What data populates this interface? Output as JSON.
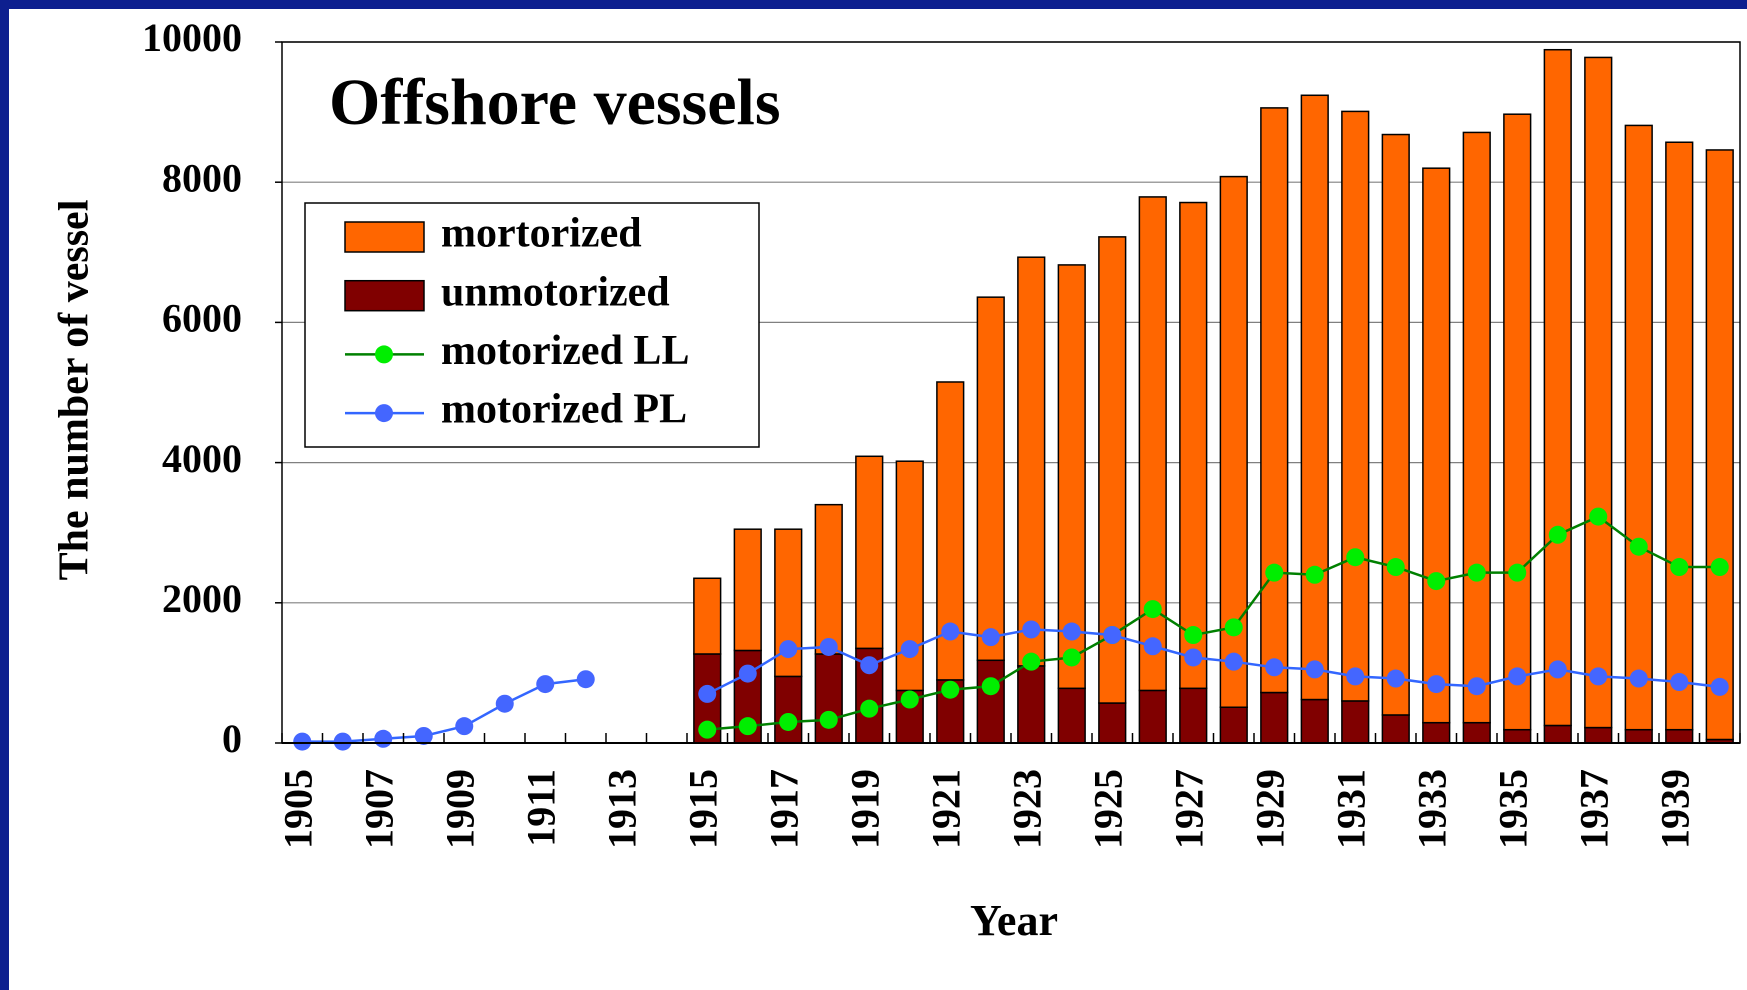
{
  "chart_data": {
    "type": "bar",
    "title": "Offshore vessels",
    "x_label": "Year",
    "y_label": "The number of vessel",
    "categories": [
      "1905",
      null,
      "1907",
      null,
      "1909",
      null,
      "1911",
      null,
      "1913",
      null,
      "1915",
      null,
      "1917",
      null,
      "1919",
      null,
      "1921",
      null,
      "1923",
      null,
      "1925",
      null,
      "1927",
      null,
      "1929",
      null,
      "1931",
      null,
      "1933",
      null,
      "1935",
      null,
      "1937",
      null,
      "1939",
      null
    ],
    "ylim": [
      0,
      10000
    ],
    "yticks": [
      0,
      2000,
      4000,
      6000,
      8000,
      10000
    ],
    "grid": true,
    "stacked": true,
    "legend": "upper left",
    "series": [
      {
        "name": "mortorized",
        "type": "bar",
        "color": "#ff6600",
        "values": [
          null,
          null,
          null,
          null,
          null,
          null,
          null,
          null,
          null,
          null,
          1080,
          1730,
          2100,
          2130,
          2740,
          3270,
          4250,
          5180,
          5830,
          6040,
          6650,
          7040,
          6930,
          7570,
          8340,
          8620,
          8410,
          8280,
          7910,
          8420,
          8780,
          9640,
          9560,
          8620,
          8380,
          8410
        ]
      },
      {
        "name": "unmotorized",
        "type": "bar",
        "color": "#800000",
        "values": [
          null,
          null,
          null,
          null,
          null,
          null,
          null,
          null,
          null,
          null,
          1270,
          1320,
          950,
          1270,
          1350,
          750,
          900,
          1180,
          1100,
          780,
          570,
          750,
          780,
          510,
          720,
          620,
          600,
          400,
          290,
          290,
          190,
          250,
          220,
          190,
          190,
          50
        ]
      },
      {
        "name": "motorized LL",
        "type": "line",
        "color": "#008000",
        "marker_color": "#00ee00",
        "values": [
          null,
          null,
          null,
          null,
          null,
          null,
          null,
          null,
          null,
          null,
          190,
          240,
          300,
          330,
          490,
          620,
          760,
          810,
          1160,
          1220,
          1540,
          1910,
          1540,
          1650,
          2430,
          2400,
          2650,
          2510,
          2310,
          2430,
          2430,
          2970,
          3230,
          2800,
          2510,
          2510
        ]
      },
      {
        "name": "motorized PL",
        "type": "line",
        "color": "#3366ff",
        "marker_color": "#4466ff",
        "values": [
          20,
          20,
          60,
          100,
          240,
          560,
          840,
          910,
          null,
          null,
          700,
          990,
          1340,
          1370,
          1110,
          1340,
          1590,
          1510,
          1620,
          1590,
          1540,
          1380,
          1220,
          1160,
          1080,
          1050,
          950,
          920,
          840,
          810,
          950,
          1050,
          950,
          920,
          870,
          800
        ]
      }
    ]
  }
}
